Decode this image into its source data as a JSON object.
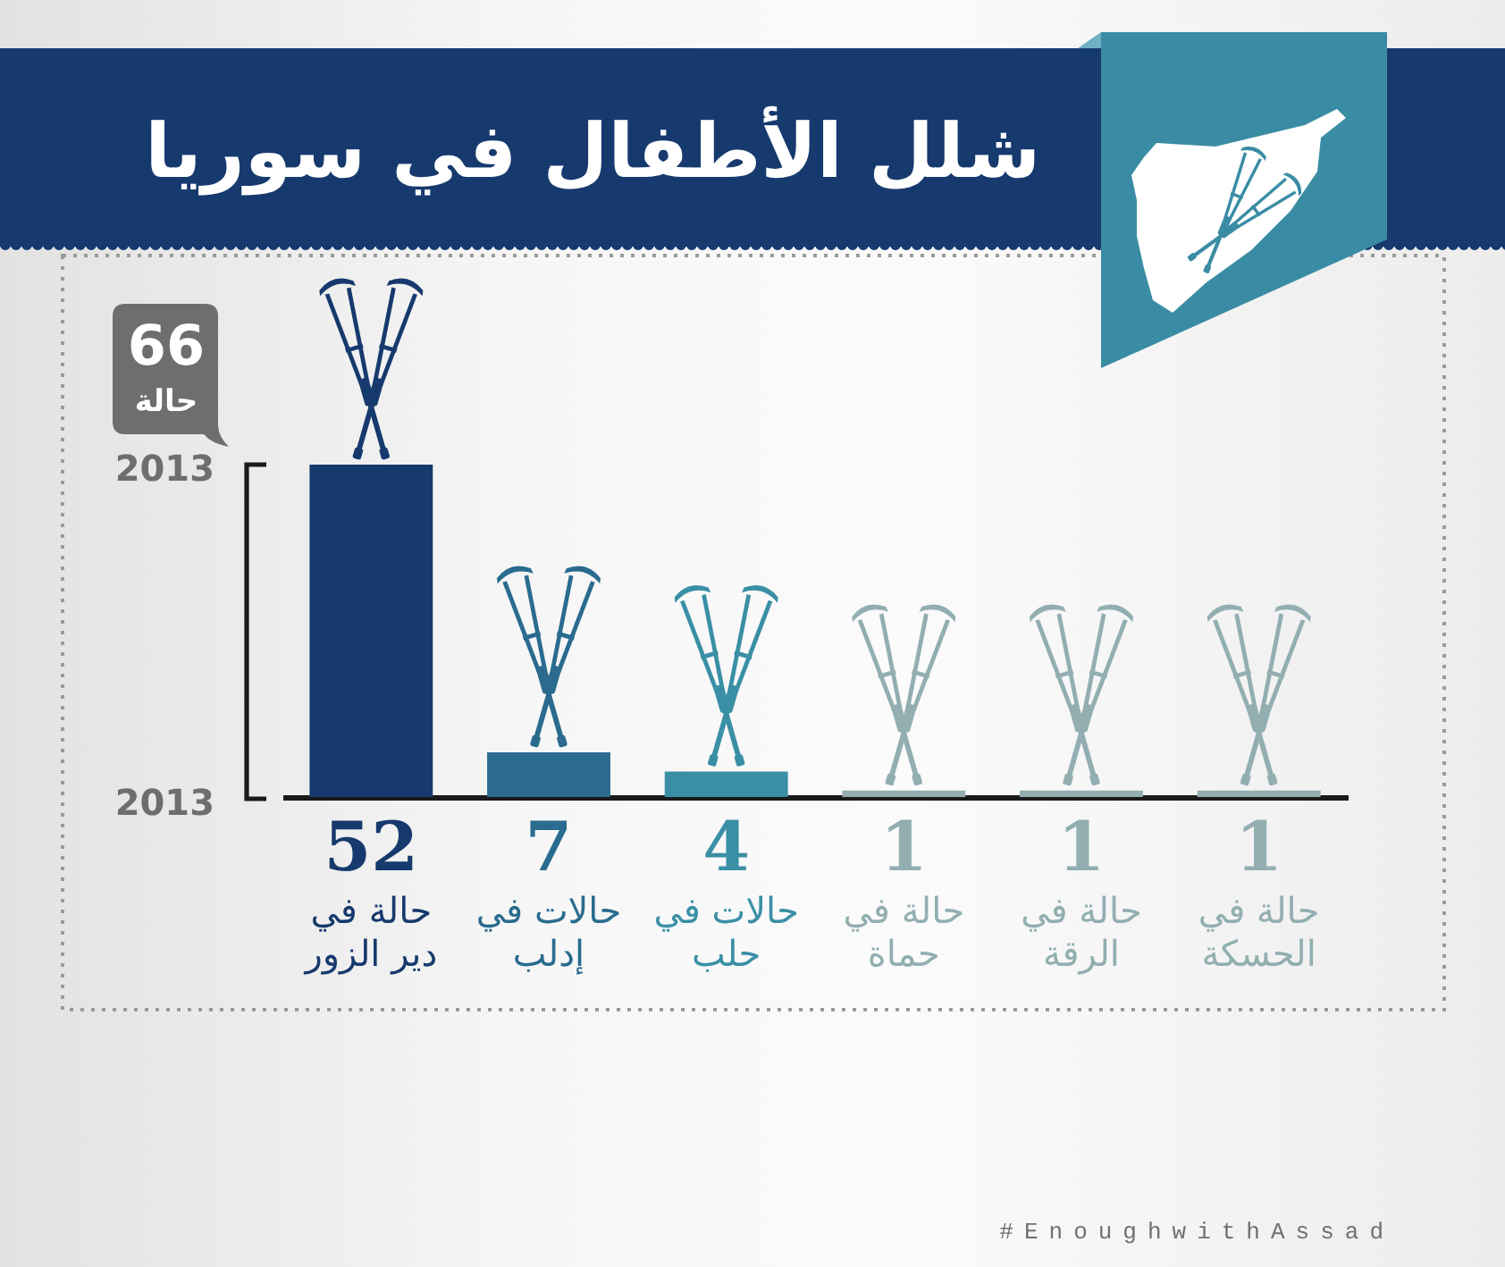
{
  "chart_data": {
    "type": "bar",
    "title": "شلل الأطفال في سوريا",
    "categories": [
      "حالة في دير الزور",
      "حالات في إدلب",
      "حالات في حلب",
      "حالة في حماة",
      "حالة في الرقة",
      "حالة في الحسكة"
    ],
    "values": [
      52,
      7,
      4,
      1,
      1,
      1
    ],
    "colors": [
      "#163a6d",
      "#2a6b8f",
      "#3a8fa5",
      "#92aeb1",
      "#92aeb1",
      "#92aeb1"
    ],
    "data_labels": true,
    "annotations": [
      "66 حالة",
      "2013",
      "2013",
      "#EnoughwithAssad"
    ]
  }
}
